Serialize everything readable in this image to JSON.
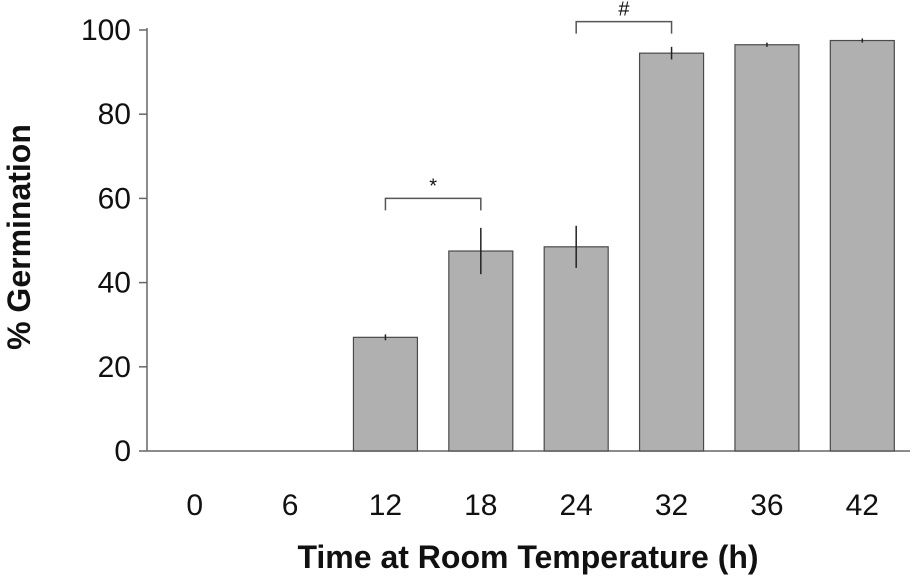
{
  "chart_data": {
    "type": "bar",
    "title": "",
    "xlabel": "Time at Room Temperature (h)",
    "ylabel": "% Germination",
    "categories": [
      "0",
      "6",
      "12",
      "18",
      "24",
      "32",
      "36",
      "42"
    ],
    "values": [
      0,
      0,
      27,
      47.5,
      48.5,
      94.5,
      96.5,
      97.5
    ],
    "errors": [
      0,
      0,
      0.7,
      5.5,
      5,
      1.5,
      0.5,
      0.5
    ],
    "ylim": [
      0,
      100
    ],
    "yticks": [
      0,
      20,
      40,
      60,
      80,
      100
    ],
    "grid": false,
    "bar_color": "#b0b0b0",
    "bar_edge_color": "#4a4a4a",
    "annotations": [
      {
        "text": "*",
        "from": "12",
        "to": "18",
        "level": 60
      },
      {
        "text": "#",
        "from": "24",
        "to": "32",
        "level": 102
      }
    ]
  }
}
